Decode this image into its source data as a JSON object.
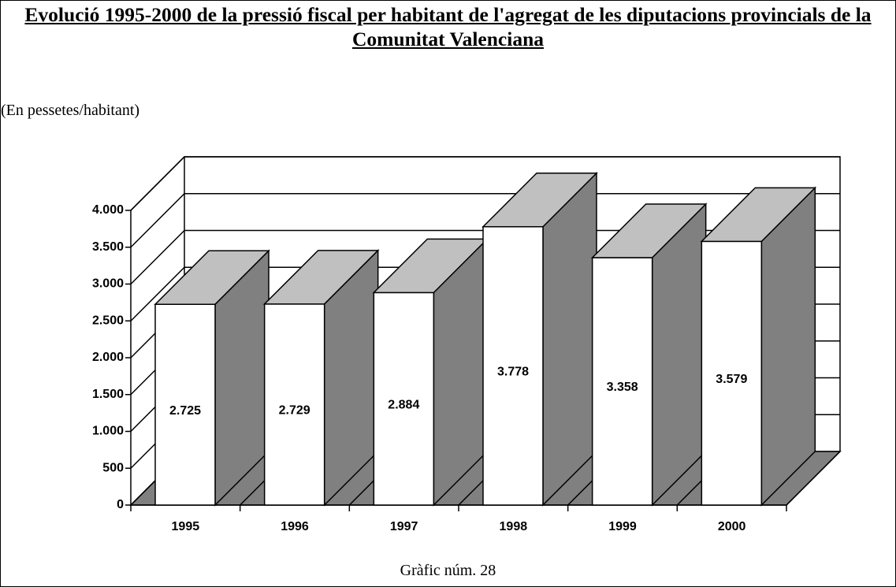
{
  "chart_data": {
    "type": "bar3d",
    "title": "Evolució 1995-2000 de la pressió fiscal per habitant de l'agregat de les diputacions provincials de la Comunitat Valenciana",
    "subtitle": "(En pessetes/habitant)",
    "caption": "Gràfic núm. 28",
    "categories": [
      "1995",
      "1996",
      "1997",
      "1998",
      "1999",
      "2000"
    ],
    "values": [
      2725,
      2729,
      2884,
      3778,
      3358,
      3579
    ],
    "value_labels": [
      "2.725",
      "2.729",
      "2.884",
      "3.778",
      "3.358",
      "3.579"
    ],
    "colors": {
      "front": "#ffffff",
      "side": "#808080",
      "top": "#c0c0c0",
      "floor": "#808080"
    },
    "ylim": [
      0,
      4000
    ],
    "yticks": [
      0,
      500,
      {
        "value": 1000,
        "label": "1.000"
      },
      {
        "value": 1500,
        "label": "1.500"
      },
      {
        "value": 2000,
        "label": "2.000"
      },
      {
        "value": 2500,
        "label": "2.500"
      },
      {
        "value": 3000,
        "label": "3.000"
      },
      {
        "value": 3500,
        "label": "3.500"
      },
      {
        "value": 4000,
        "label": "4.000"
      }
    ],
    "grid": true
  }
}
